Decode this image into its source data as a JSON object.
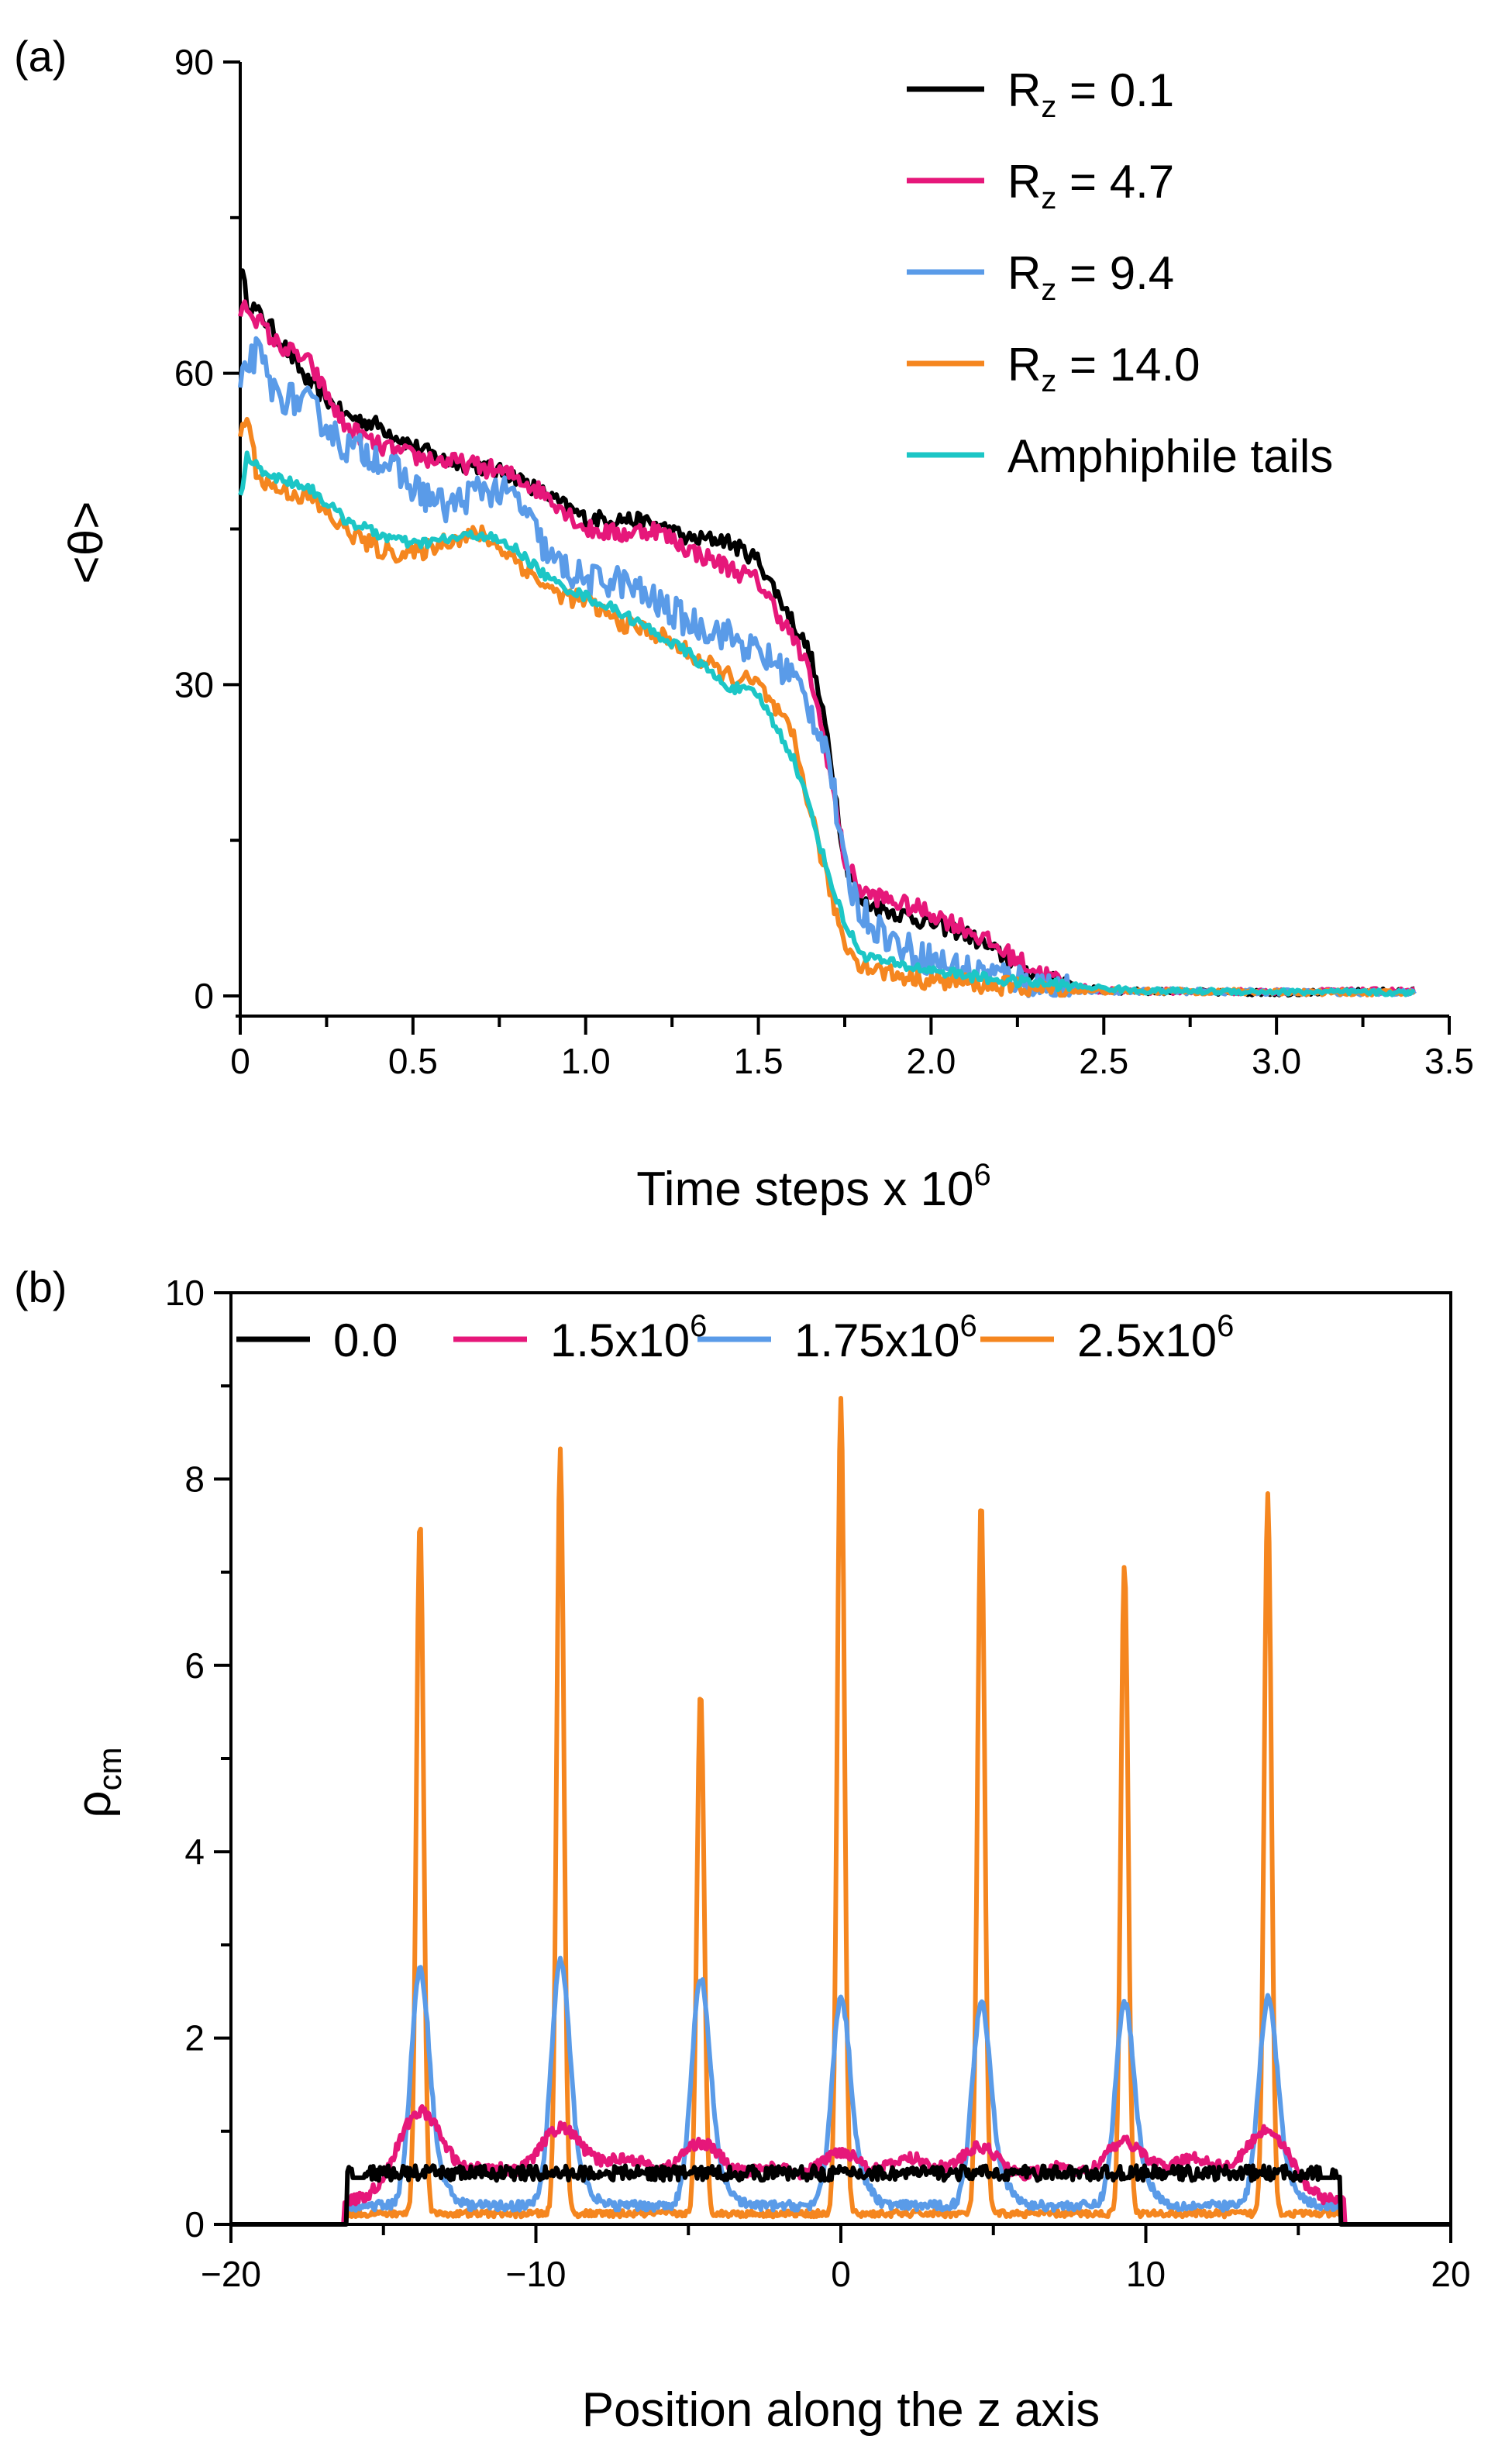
{
  "chart_data": [
    {
      "type": "line",
      "panel_label": "(a)",
      "xlabel": "Time steps x 10",
      "xlabel_sup": "6",
      "ylabel": "<θ>",
      "xlim": [
        0,
        3.5
      ],
      "ylim": [
        0,
        90
      ],
      "x_ticks": [
        "0",
        "0.5",
        "1.0",
        "1.5",
        "2.0",
        "2.5",
        "3.0",
        "3.5"
      ],
      "y_ticks": [
        "0",
        "30",
        "60",
        "90"
      ],
      "legend": [
        {
          "base": "R",
          "sub": "z",
          "rest": " = 0.1",
          "color": "#000000"
        },
        {
          "base": "R",
          "sub": "z",
          "rest": " = 4.7",
          "color": "#e6177a"
        },
        {
          "base": "R",
          "sub": "z",
          "rest": " = 9.4",
          "color": "#5a9be8"
        },
        {
          "base": "R",
          "sub": "z",
          "rest": " = 14.0",
          "color": "#f5861f"
        },
        {
          "base": "Amphiphile tails",
          "sub": "",
          "rest": "",
          "color": "#1cc6c6"
        }
      ],
      "series": [
        {
          "name": "Rz = 0.1",
          "color": "#000000",
          "noise": 0.8,
          "points": [
            [
              0,
              70.5
            ],
            [
              0.02,
              67
            ],
            [
              0.1,
              64
            ],
            [
              0.2,
              59
            ],
            [
              0.3,
              56
            ],
            [
              0.4,
              55
            ],
            [
              0.5,
              53
            ],
            [
              0.6,
              51.5
            ],
            [
              0.7,
              51
            ],
            [
              0.8,
              50
            ],
            [
              0.9,
              48
            ],
            [
              1.0,
              46
            ],
            [
              1.1,
              46
            ],
            [
              1.2,
              45.5
            ],
            [
              1.3,
              44
            ],
            [
              1.4,
              44
            ],
            [
              1.5,
              42
            ],
            [
              1.6,
              36
            ],
            [
              1.65,
              33
            ],
            [
              1.7,
              25
            ],
            [
              1.75,
              13
            ],
            [
              1.8,
              9
            ],
            [
              1.9,
              8
            ],
            [
              2.0,
              7
            ],
            [
              2.1,
              6
            ],
            [
              2.2,
              4
            ],
            [
              2.3,
              2
            ],
            [
              2.4,
              1
            ],
            [
              2.5,
              0.5
            ],
            [
              3.0,
              0.3
            ],
            [
              3.4,
              0.5
            ]
          ]
        },
        {
          "name": "Rz = 4.7",
          "color": "#e6177a",
          "noise": 0.9,
          "points": [
            [
              0,
              66
            ],
            [
              0.02,
              66.5
            ],
            [
              0.1,
              63
            ],
            [
              0.2,
              61
            ],
            [
              0.3,
              55
            ],
            [
              0.4,
              53
            ],
            [
              0.5,
              52
            ],
            [
              0.6,
              51.5
            ],
            [
              0.7,
              51
            ],
            [
              0.8,
              50
            ],
            [
              0.9,
              48
            ],
            [
              1.0,
              45
            ],
            [
              1.1,
              44.5
            ],
            [
              1.2,
              45
            ],
            [
              1.3,
              43
            ],
            [
              1.4,
              41.5
            ],
            [
              1.5,
              40
            ],
            [
              1.6,
              34.5
            ],
            [
              1.65,
              31
            ],
            [
              1.7,
              23
            ],
            [
              1.75,
              13
            ],
            [
              1.8,
              10
            ],
            [
              1.9,
              9
            ],
            [
              2.0,
              8
            ],
            [
              2.1,
              6.5
            ],
            [
              2.2,
              4.5
            ],
            [
              2.3,
              2.5
            ],
            [
              2.4,
              1
            ],
            [
              2.5,
              0.5
            ],
            [
              3.0,
              0.4
            ],
            [
              3.4,
              0.5
            ]
          ]
        },
        {
          "name": "Rz = 9.4",
          "color": "#5a9be8",
          "noise": 1.6,
          "points": [
            [
              0,
              58
            ],
            [
              0.02,
              61
            ],
            [
              0.05,
              62
            ],
            [
              0.1,
              58
            ],
            [
              0.2,
              57
            ],
            [
              0.3,
              53
            ],
            [
              0.4,
              52
            ],
            [
              0.5,
              49
            ],
            [
              0.6,
              47
            ],
            [
              0.7,
              49
            ],
            [
              0.8,
              48
            ],
            [
              0.9,
              42
            ],
            [
              1.0,
              40
            ],
            [
              1.1,
              40
            ],
            [
              1.2,
              38
            ],
            [
              1.3,
              36
            ],
            [
              1.4,
              35
            ],
            [
              1.5,
              33
            ],
            [
              1.6,
              31
            ],
            [
              1.7,
              24
            ],
            [
              1.75,
              12
            ],
            [
              1.8,
              8
            ],
            [
              1.9,
              5
            ],
            [
              2.0,
              3.5
            ],
            [
              2.1,
              2.5
            ],
            [
              2.2,
              2
            ],
            [
              2.4,
              0.5
            ],
            [
              3.4,
              0.3
            ]
          ]
        },
        {
          "name": "Rz = 14.0",
          "color": "#f5861f",
          "noise": 0.9,
          "points": [
            [
              0,
              54
            ],
            [
              0.02,
              56
            ],
            [
              0.05,
              50
            ],
            [
              0.1,
              49
            ],
            [
              0.2,
              48
            ],
            [
              0.3,
              45
            ],
            [
              0.4,
              43
            ],
            [
              0.5,
              42.5
            ],
            [
              0.6,
              44
            ],
            [
              0.7,
              44.5
            ],
            [
              0.8,
              42
            ],
            [
              0.9,
              39
            ],
            [
              1.0,
              38
            ],
            [
              1.1,
              36
            ],
            [
              1.2,
              35
            ],
            [
              1.3,
              33
            ],
            [
              1.4,
              31
            ],
            [
              1.5,
              30
            ],
            [
              1.6,
              25
            ],
            [
              1.65,
              18
            ],
            [
              1.7,
              11
            ],
            [
              1.75,
              5
            ],
            [
              1.8,
              3
            ],
            [
              1.9,
              2
            ],
            [
              2.0,
              1.5
            ],
            [
              2.2,
              1
            ],
            [
              2.4,
              0.5
            ],
            [
              3.4,
              0.3
            ]
          ]
        },
        {
          "name": "Amphiphile tails",
          "color": "#1cc6c6",
          "noise": 0.5,
          "points": [
            [
              0,
              48
            ],
            [
              0.02,
              52
            ],
            [
              0.05,
              51
            ],
            [
              0.1,
              50
            ],
            [
              0.2,
              49
            ],
            [
              0.3,
              46
            ],
            [
              0.4,
              44.5
            ],
            [
              0.5,
              43.5
            ],
            [
              0.6,
              44
            ],
            [
              0.7,
              44.5
            ],
            [
              0.8,
              43
            ],
            [
              0.9,
              40
            ],
            [
              1.0,
              38.5
            ],
            [
              1.1,
              37
            ],
            [
              1.2,
              35
            ],
            [
              1.3,
              33
            ],
            [
              1.4,
              30
            ],
            [
              1.5,
              29
            ],
            [
              1.6,
              23
            ],
            [
              1.65,
              18
            ],
            [
              1.7,
              12
            ],
            [
              1.75,
              7
            ],
            [
              1.8,
              4
            ],
            [
              1.9,
              3
            ],
            [
              2.0,
              2.5
            ],
            [
              2.2,
              1.5
            ],
            [
              2.4,
              1
            ],
            [
              2.6,
              0.5
            ],
            [
              3.4,
              0.3
            ]
          ]
        }
      ]
    },
    {
      "type": "line",
      "panel_label": "(b)",
      "xlabel": "Position along the z axis",
      "ylabel": "ρ",
      "ylabel_sub": "cm",
      "xlim": [
        -20,
        20
      ],
      "ylim": [
        0,
        10
      ],
      "x_ticks": [
        "−20",
        "−10",
        "0",
        "10",
        "20"
      ],
      "y_ticks": [
        "0",
        "2",
        "4",
        "6",
        "8",
        "10"
      ],
      "legend": [
        {
          "base": "0.0",
          "sup": "",
          "color": "#000000"
        },
        {
          "base": "1.5x10",
          "sup": "6",
          "color": "#e6177a"
        },
        {
          "base": "1.75x10",
          "sup": "6",
          "color": "#5a9be8"
        },
        {
          "base": "2.5x10",
          "sup": "6",
          "color": "#f5861f"
        }
      ],
      "series": [
        {
          "name": "0.0",
          "color": "#000000",
          "profile": "flat",
          "level": 0.55,
          "noise": 0.08,
          "range": [
            -16.2,
            16.4
          ]
        },
        {
          "name": "1.5x10^6",
          "color": "#e6177a",
          "profile": "bumps",
          "bump_height": [
            1.2,
            1.0,
            0.85,
            0.75,
            0.8,
            0.85,
            1.0,
            1.45
          ],
          "bump_width": 0.75,
          "base": 0.25,
          "noise": 0.06
        },
        {
          "name": "1.75x10^6",
          "color": "#5a9be8",
          "profile": "peaks",
          "peak_height": [
            2.45,
            2.55,
            2.35,
            2.15,
            2.1,
            2.1,
            2.15
          ],
          "peak_width": 0.3,
          "base": 0.3,
          "noise": 0.1
        },
        {
          "name": "2.5x10^6",
          "color": "#f5861f",
          "profile": "spikes",
          "peak_height": [
            7.45,
            8.2,
            5.6,
            8.75,
            7.65,
            7.0,
            7.75
          ],
          "peak_width": 0.12,
          "base": 0.08,
          "noise": 0.07
        }
      ],
      "peak_positions": [
        -13.8,
        -9.2,
        -4.6,
        0.0,
        4.6,
        9.3,
        14.0
      ]
    }
  ]
}
